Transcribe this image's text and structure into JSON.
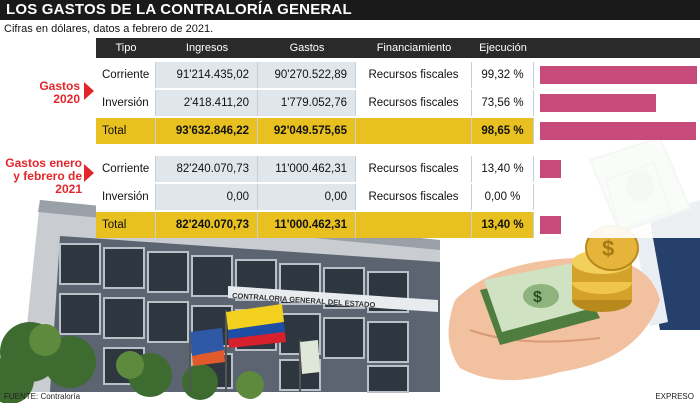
{
  "title": "LOS GASTOS DE LA CONTRALORÍA GENERAL",
  "subtitle": "Cifras en dólares, datos a febrero de 2021.",
  "footer": "FUENTE: Contraloría",
  "credit": "EXPRESO",
  "building_sign": "CONTRALORIA GENERAL DEL ESTADO",
  "colors": {
    "bar": "#c64a7a",
    "header": "#2a2a2a",
    "total": "#e8c121",
    "accent": "#e3262b"
  },
  "chart_data": {
    "type": "table",
    "columns": [
      "Tipo",
      "Ingresos",
      "Gastos",
      "Financiamiento",
      "Ejecución"
    ],
    "groups": [
      {
        "label": "Gastos 2020",
        "rows": [
          {
            "tipo": "Corriente",
            "ingresos": "91'214.435,02",
            "gastos": "90'270.522,89",
            "financiamiento": "Recursos fiscales",
            "ejecucion": "99,32 %",
            "ejecucion_value": 99.32,
            "total": false
          },
          {
            "tipo": "Inversión",
            "ingresos": "2'418.411,20",
            "gastos": "1'779.052,76",
            "financiamiento": "Recursos fiscales",
            "ejecucion": "73,56 %",
            "ejecucion_value": 73.56,
            "total": false
          },
          {
            "tipo": "Total",
            "ingresos": "93'632.846,22",
            "gastos": "92'049.575,65",
            "financiamiento": "",
            "ejecucion": "98,65 %",
            "ejecucion_value": 98.65,
            "total": true
          }
        ]
      },
      {
        "label": "Gastos enero y febrero de 2021",
        "rows": [
          {
            "tipo": "Corriente",
            "ingresos": "82'240.070,73",
            "gastos": "11'000.462,31",
            "financiamiento": "Recursos fiscales",
            "ejecucion": "13,40 %",
            "ejecucion_value": 13.4,
            "total": false
          },
          {
            "tipo": "Inversión",
            "ingresos": "0,00",
            "gastos": "0,00",
            "financiamiento": "Recursos fiscales",
            "ejecucion": "0,00 %",
            "ejecucion_value": 0,
            "total": false
          },
          {
            "tipo": "Total",
            "ingresos": "82'240.070,73",
            "gastos": "11'000.462,31",
            "financiamiento": "",
            "ejecucion": "13,40 %",
            "ejecucion_value": 13.4,
            "total": true
          }
        ]
      }
    ]
  }
}
